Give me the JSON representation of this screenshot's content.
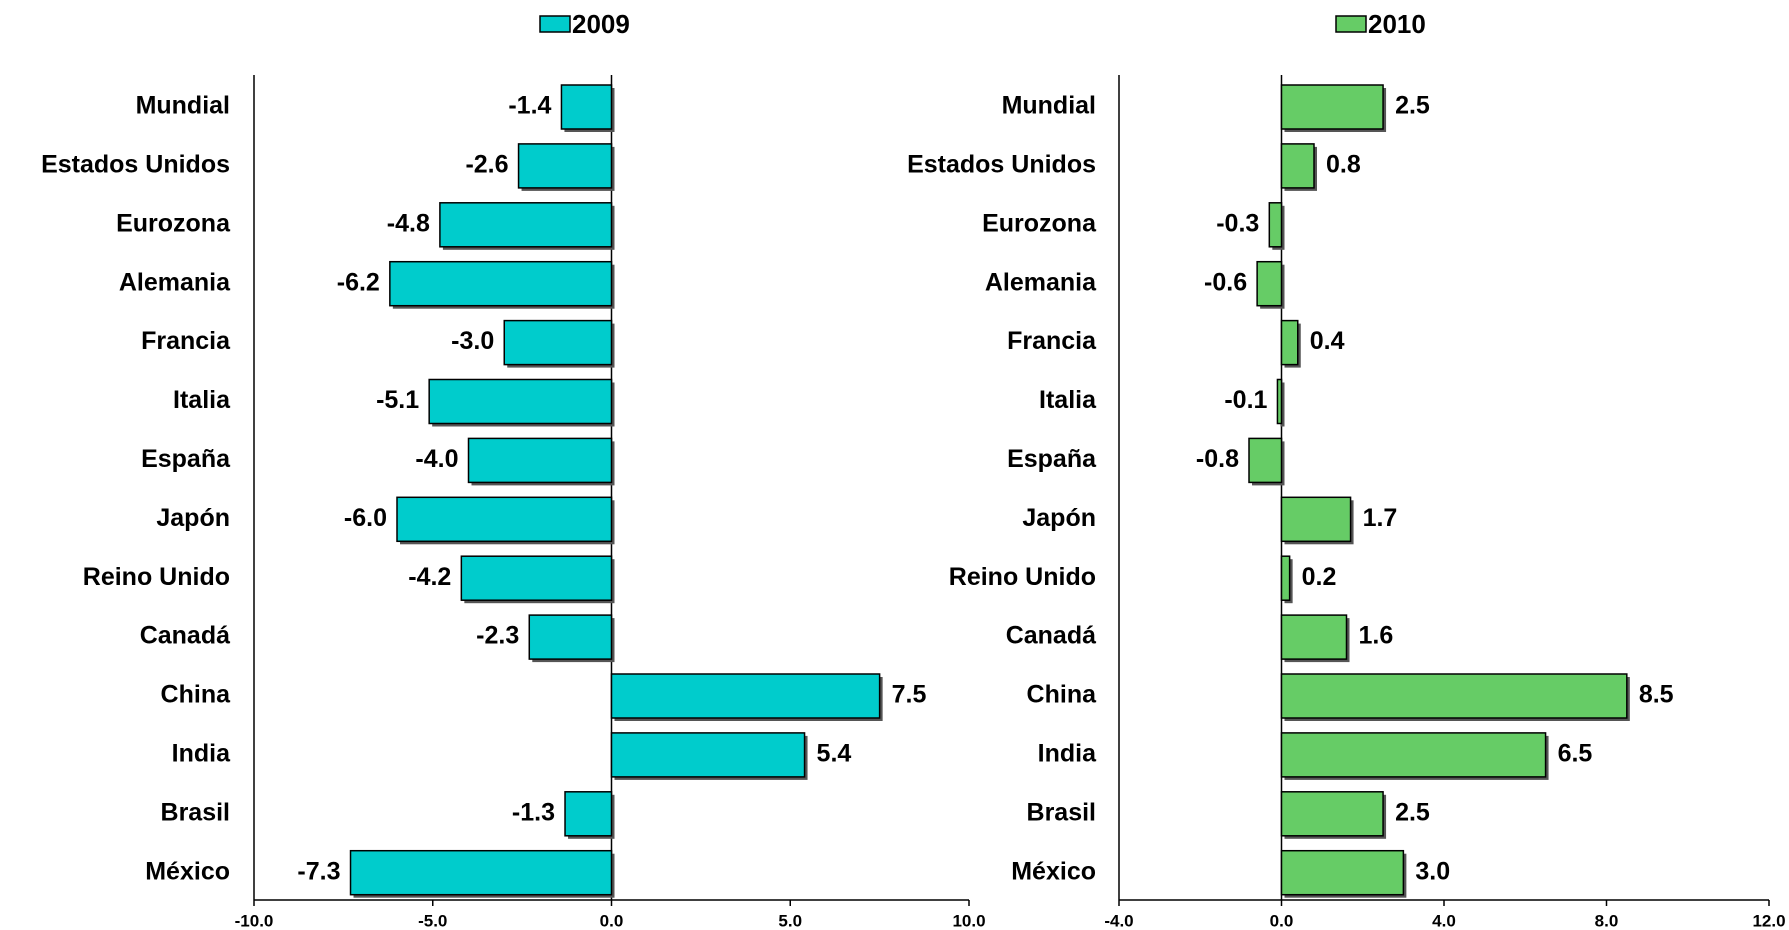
{
  "chart_data": [
    {
      "type": "bar",
      "orientation": "horizontal",
      "categories": [
        "Mundial",
        "Estados Unidos",
        "Eurozona",
        "Alemania",
        "Francia",
        "Italia",
        "España",
        "Japón",
        "Reino Unido",
        "Canadá",
        "China",
        "India",
        "Brasil",
        "México"
      ],
      "series": [
        {
          "name": "2009",
          "color": "#00cccc",
          "values": [
            -1.4,
            -2.6,
            -4.8,
            -6.2,
            -3.0,
            -5.1,
            -4.0,
            -6.0,
            -4.2,
            -2.3,
            7.5,
            5.4,
            -1.3,
            -7.3
          ],
          "value_labels": [
            "-1.4",
            "-2.6",
            "-4.8",
            "-6.2",
            "-3.0",
            "-5.1",
            "-4.0",
            "-6.0",
            "-4.2",
            "-2.3",
            "7.5",
            "5.4",
            "-1.3",
            "-7.3"
          ]
        }
      ],
      "xlim": [
        -10,
        10
      ],
      "xticks": [
        {
          "value": -10,
          "label": "-10.0"
        },
        {
          "value": -5,
          "label": "-5.0"
        },
        {
          "value": 0,
          "label": "0.0"
        },
        {
          "value": 5,
          "label": "5.0"
        },
        {
          "value": 10,
          "label": "10.0"
        }
      ],
      "legend": "top"
    },
    {
      "type": "bar",
      "orientation": "horizontal",
      "categories": [
        "Mundial",
        "Estados Unidos",
        "Eurozona",
        "Alemania",
        "Francia",
        "Italia",
        "España",
        "Japón",
        "Reino Unido",
        "Canadá",
        "China",
        "India",
        "Brasil",
        "México"
      ],
      "series": [
        {
          "name": "2010",
          "color": "#66cc66",
          "values": [
            2.5,
            0.8,
            -0.3,
            -0.6,
            0.4,
            -0.1,
            -0.8,
            1.7,
            0.2,
            1.6,
            8.5,
            6.5,
            2.5,
            3.0
          ],
          "value_labels": [
            "2.5",
            "0.8",
            "-0.3",
            "-0.6",
            "0.4",
            "-0.1",
            "-0.8",
            "1.7",
            "0.2",
            "1.6",
            "8.5",
            "6.5",
            "2.5",
            "3.0"
          ]
        }
      ],
      "xlim": [
        -4,
        12
      ],
      "xticks": [
        {
          "value": -4,
          "label": "-4.0"
        },
        {
          "value": 0,
          "label": "0.0"
        },
        {
          "value": 4,
          "label": "4.0"
        },
        {
          "value": 8,
          "label": "8.0"
        },
        {
          "value": 12,
          "label": "12.0"
        }
      ],
      "legend": "top"
    }
  ]
}
